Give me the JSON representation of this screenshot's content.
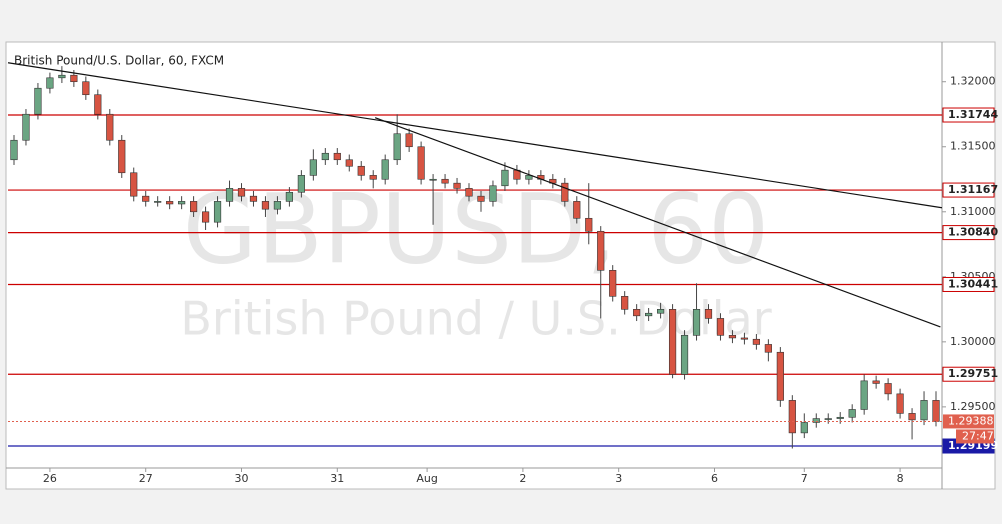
{
  "chart_data": {
    "type": "candlestick",
    "title": "British Pound/U.S. Dollar, 60, FXCM",
    "watermark": "GBPUSD, 60",
    "watermark_subtitle": "British Pound / U.S. Dollar",
    "up_color": "#6ba583",
    "down_color": "#d75442",
    "grid": false,
    "xlim": [
      -0.5,
      77.5
    ],
    "xticks": [
      {
        "value": 3,
        "label": "26"
      },
      {
        "value": 11,
        "label": "27"
      },
      {
        "value": 19,
        "label": "30"
      },
      {
        "value": 27,
        "label": "31"
      },
      {
        "value": 34.5,
        "label": "Aug"
      },
      {
        "value": 42.5,
        "label": "2"
      },
      {
        "value": 50.5,
        "label": "3"
      },
      {
        "value": 58.5,
        "label": "6"
      },
      {
        "value": 66,
        "label": "7"
      },
      {
        "value": 74,
        "label": "8"
      }
    ],
    "ylim": [
      1.2903,
      1.3229
    ],
    "yticks": [
      {
        "value": 1.295,
        "label": "1.29500"
      },
      {
        "value": 1.3,
        "label": "1.30000"
      },
      {
        "value": 1.305,
        "label": "1.30500"
      },
      {
        "value": 1.31,
        "label": "1.31000"
      },
      {
        "value": 1.315,
        "label": "1.31500"
      },
      {
        "value": 1.32,
        "label": "1.32000"
      }
    ],
    "open": [
      1.314,
      1.3155,
      1.3175,
      1.3195,
      1.3203,
      1.3205,
      1.32,
      1.319,
      1.3175,
      1.3155,
      1.313,
      1.3112,
      1.3108,
      1.3108,
      1.3106,
      1.3108,
      1.31,
      1.3092,
      1.3108,
      1.3118,
      1.3112,
      1.3108,
      1.3102,
      1.3108,
      1.3115,
      1.3128,
      1.314,
      1.3145,
      1.314,
      1.3135,
      1.3128,
      1.3125,
      1.314,
      1.316,
      1.315,
      1.3125,
      1.3125,
      1.3122,
      1.3118,
      1.3112,
      1.3108,
      1.312,
      1.3132,
      1.3125,
      1.3128,
      1.3125,
      1.3122,
      1.3108,
      1.3095,
      1.3085,
      1.3055,
      1.3035,
      1.3025,
      1.302,
      1.3022,
      1.3025,
      1.2975,
      1.3005,
      1.3025,
      1.3018,
      1.3005,
      1.3003,
      1.3002,
      1.2998,
      1.2992,
      1.2955,
      1.293,
      1.2938,
      1.2941,
      1.2941,
      1.2942,
      1.2948,
      1.297,
      1.2968,
      1.296,
      1.2945,
      1.294,
      1.2955
    ],
    "high": [
      1.3159,
      1.3179,
      1.3199,
      1.3207,
      1.3212,
      1.3209,
      1.3204,
      1.3194,
      1.3179,
      1.3159,
      1.3134,
      1.3116,
      1.3112,
      1.3112,
      1.3112,
      1.3112,
      1.3104,
      1.3112,
      1.3124,
      1.3122,
      1.3116,
      1.3112,
      1.3112,
      1.3119,
      1.3132,
      1.3148,
      1.3149,
      1.3149,
      1.3144,
      1.3139,
      1.3132,
      1.3144,
      1.3175,
      1.3164,
      1.3154,
      1.3129,
      1.3129,
      1.3126,
      1.3122,
      1.3116,
      1.3124,
      1.3138,
      1.3136,
      1.3132,
      1.3132,
      1.3129,
      1.3126,
      1.3112,
      1.3122,
      1.3089,
      1.3059,
      1.3039,
      1.3029,
      1.3026,
      1.303,
      1.3029,
      1.3009,
      1.3045,
      1.3029,
      1.3022,
      1.3009,
      1.3007,
      1.3006,
      1.3002,
      1.2996,
      1.2959,
      1.2945,
      1.2945,
      1.2945,
      1.2946,
      1.2952,
      1.2975,
      1.2974,
      1.2972,
      1.2964,
      1.2949,
      1.2962,
      1.2962
    ],
    "low": [
      1.3136,
      1.3151,
      1.3171,
      1.3191,
      1.3199,
      1.3196,
      1.3186,
      1.3171,
      1.3151,
      1.3126,
      1.3108,
      1.3104,
      1.3104,
      1.3102,
      1.3102,
      1.3096,
      1.3086,
      1.3088,
      1.3104,
      1.3108,
      1.3104,
      1.3096,
      1.3098,
      1.3104,
      1.3111,
      1.3124,
      1.3136,
      1.3136,
      1.3131,
      1.3124,
      1.3118,
      1.3121,
      1.3136,
      1.3146,
      1.3121,
      1.309,
      1.3118,
      1.3114,
      1.3108,
      1.31,
      1.3104,
      1.3116,
      1.3121,
      1.3121,
      1.3121,
      1.3118,
      1.3104,
      1.3091,
      1.3075,
      1.3018,
      1.3031,
      1.3021,
      1.3016,
      1.3016,
      1.3018,
      1.2972,
      1.2971,
      1.3001,
      1.3014,
      1.3001,
      1.2999,
      1.2998,
      1.2994,
      1.2985,
      1.295,
      1.2918,
      1.2926,
      1.2934,
      1.2937,
      1.2937,
      1.2938,
      1.2944,
      1.2964,
      1.2955,
      1.2941,
      1.2925,
      1.2936,
      1.2935
    ],
    "close": [
      1.3155,
      1.3175,
      1.3195,
      1.3203,
      1.3205,
      1.32,
      1.319,
      1.3175,
      1.3155,
      1.313,
      1.3112,
      1.3108,
      1.3108,
      1.3106,
      1.3108,
      1.31,
      1.3092,
      1.3108,
      1.3118,
      1.3112,
      1.3108,
      1.3102,
      1.3108,
      1.3115,
      1.3128,
      1.314,
      1.3145,
      1.314,
      1.3135,
      1.3128,
      1.3125,
      1.314,
      1.316,
      1.315,
      1.3125,
      1.3125,
      1.3122,
      1.3118,
      1.3112,
      1.3108,
      1.312,
      1.3132,
      1.3125,
      1.3128,
      1.3125,
      1.3122,
      1.3108,
      1.3095,
      1.3085,
      1.3055,
      1.3035,
      1.3025,
      1.302,
      1.3022,
      1.3025,
      1.2975,
      1.3005,
      1.3025,
      1.3018,
      1.3005,
      1.3003,
      1.3002,
      1.2998,
      1.2992,
      1.2955,
      1.293,
      1.2938,
      1.2941,
      1.2941,
      1.2942,
      1.2948,
      1.297,
      1.2968,
      1.296,
      1.2945,
      1.294,
      1.2955,
      1.29388
    ],
    "levels": [
      {
        "value": 1.31744,
        "label": "1.31744",
        "color": "#cc0000"
      },
      {
        "value": 1.31167,
        "label": "1.31167",
        "color": "#cc0000"
      },
      {
        "value": 1.3084,
        "label": "1.30840",
        "color": "#cc0000"
      },
      {
        "value": 1.30441,
        "label": "1.30441",
        "color": "#cc0000"
      },
      {
        "value": 1.29751,
        "label": "1.29751",
        "color": "#cc0000"
      },
      {
        "value": 1.29199,
        "label": "1.29199",
        "color": "#1a1aa6"
      }
    ],
    "trendlines": [
      {
        "x": [
          -0.5,
          77.5
        ],
        "y": [
          1.32146,
          1.31031
        ],
        "color": "#111111"
      },
      {
        "x": [
          30.16,
          77.37
        ],
        "y": [
          1.31723,
          1.30115
        ],
        "color": "#111111"
      }
    ],
    "last_price": {
      "value": 1.29388,
      "label": "1.29388",
      "color": "#e0604e"
    },
    "countdown": "27:47"
  }
}
